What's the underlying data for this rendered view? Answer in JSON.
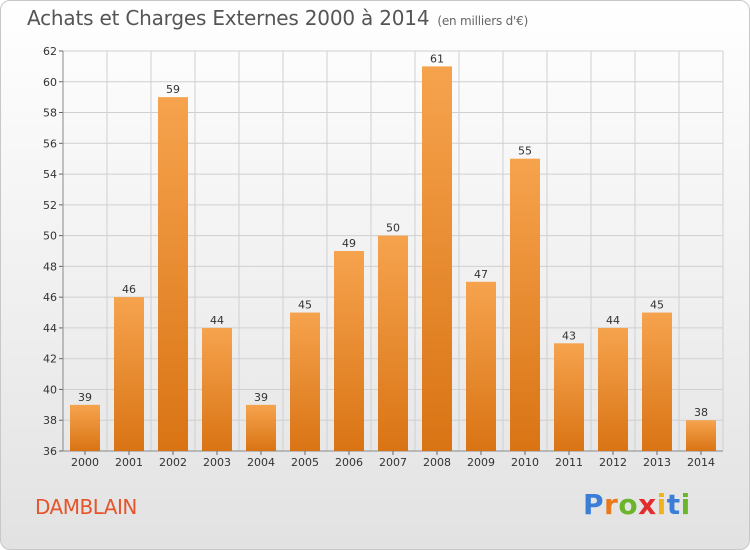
{
  "header": {
    "title": "Achats et Charges Externes 2000 à 2014",
    "subtitle": "(en milliers d'€)"
  },
  "footer": {
    "place": "DAMBLAIN",
    "logo": [
      "P",
      "r",
      "o",
      "x",
      "i",
      "t",
      "i"
    ]
  },
  "colors": {
    "bar_top": "#f6a34e",
    "bar_bottom": "#d97414",
    "grid": "#d0d0d0",
    "place": "#e5542a"
  },
  "chart_data": {
    "type": "bar",
    "title": "Achats et Charges Externes 2000 à 2014",
    "subtitle": "(en milliers d'€)",
    "xlabel": "",
    "ylabel": "",
    "categories": [
      "2000",
      "2001",
      "2002",
      "2003",
      "2004",
      "2005",
      "2006",
      "2007",
      "2008",
      "2009",
      "2010",
      "2011",
      "2012",
      "2013",
      "2014"
    ],
    "values": [
      39,
      46,
      59,
      44,
      39,
      45,
      49,
      50,
      61,
      47,
      55,
      43,
      44,
      45,
      38
    ],
    "ylim": [
      36,
      62
    ],
    "yticks": [
      36,
      38,
      40,
      42,
      44,
      46,
      48,
      50,
      52,
      54,
      56,
      58,
      60,
      62
    ],
    "grid": true,
    "data_labels": true
  }
}
